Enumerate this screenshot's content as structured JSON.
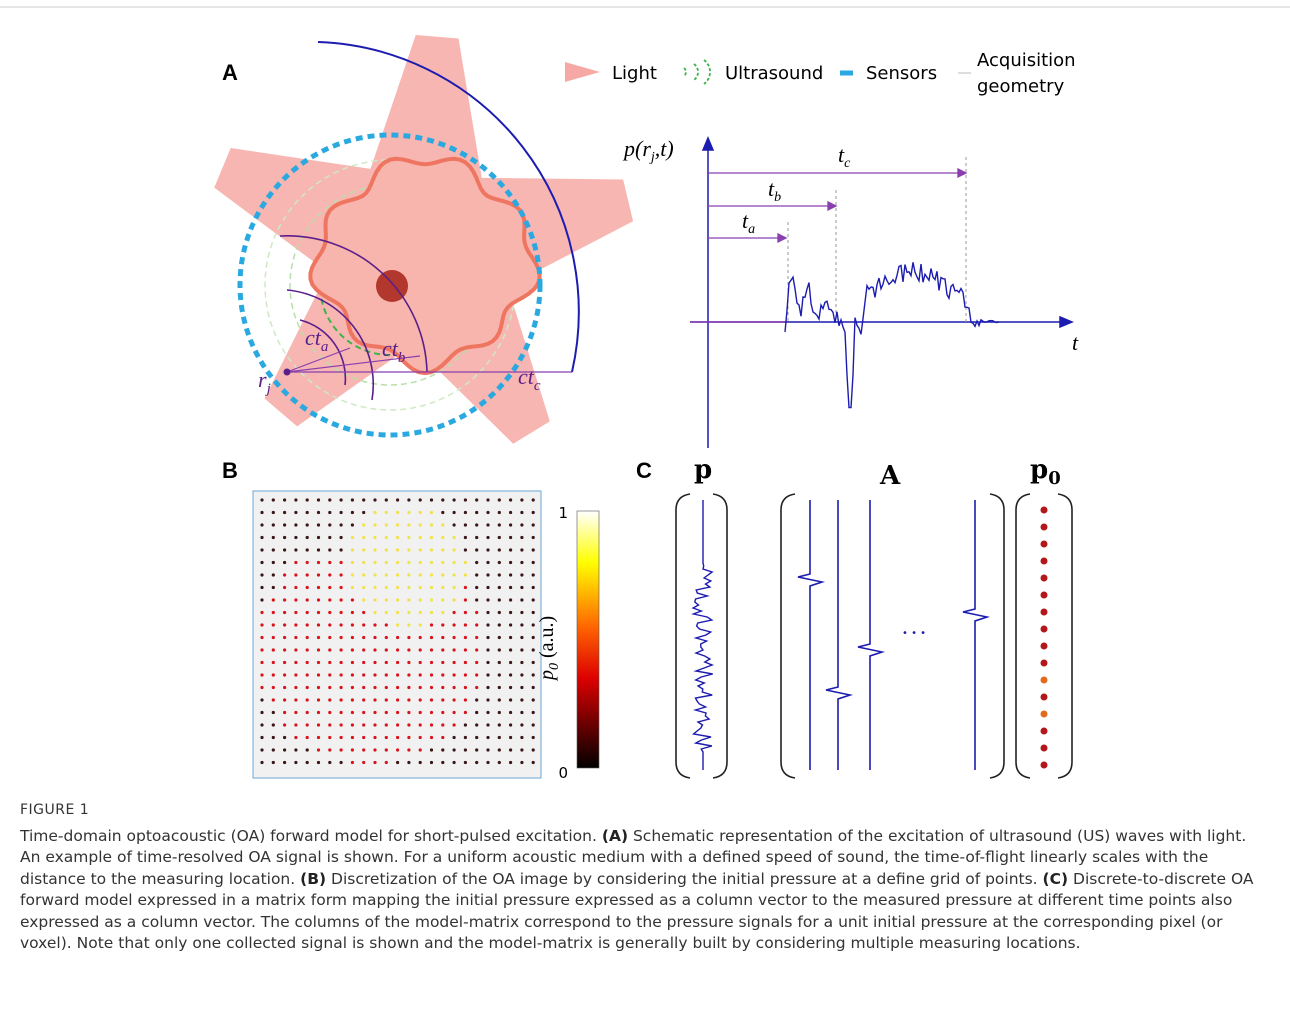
{
  "panel_a": {
    "label": "A",
    "legend": {
      "light": "Light",
      "ultrasound": "Ultrasound",
      "sensors": "Sensors",
      "acquisition": [
        "Acquisition",
        "geometry"
      ]
    },
    "distances": [
      {
        "main": "ct",
        "sub": "a"
      },
      {
        "main": "ct",
        "sub": "b"
      },
      {
        "main": "ct",
        "sub": "c"
      }
    ],
    "position": {
      "main": "r",
      "sub": "j"
    },
    "signal_plot": {
      "y_label": {
        "main": "p(r",
        "sub": "j",
        "rest": ",t)"
      },
      "x_label": "t",
      "times": [
        {
          "main": "t",
          "sub": "a"
        },
        {
          "main": "t",
          "sub": "b"
        },
        {
          "main": "t",
          "sub": "c"
        }
      ]
    }
  },
  "panel_b": {
    "label": "B",
    "colorbar": {
      "label": {
        "main": "p",
        "sub": "0",
        "rest": " (a.u.)"
      },
      "max_label": "1",
      "min_label": "0"
    }
  },
  "panel_c": {
    "label": "C",
    "signal_vector": "p",
    "model_matrix": "A",
    "pressure_vector": {
      "main": "p",
      "sub": "0"
    },
    "ellipsis": "• • •"
  },
  "caption": {
    "title": "FIGURE 1",
    "intro": "Time-domain optoacoustic (OA) forward model for short-pulsed excitation.",
    "parts": [
      {
        "label": "(A)",
        "text": "Schematic representation of the excitation of ultrasound (US) waves with light. An example of time-resolved OA signal is shown. For a uniform acoustic medium with a defined speed of sound, the time-of-flight linearly scales with the distance to the measuring location."
      },
      {
        "label": "(B)",
        "text": "Discretization of the OA image by considering the initial pressure at a define grid of points."
      },
      {
        "label": "(C)",
        "text": "Discrete-to-discrete OA forward model expressed in a matrix form mapping the initial pressure expressed as a column vector to the measured pressure at different time points also expressed as a column vector. The columns of the model-matrix correspond to the pressure signals for a unit initial pressure at the corresponding pixel (or voxel). Note that only one collected signal is shown and the model-matrix is generally built by considering multiple measuring locations."
      }
    ]
  }
}
